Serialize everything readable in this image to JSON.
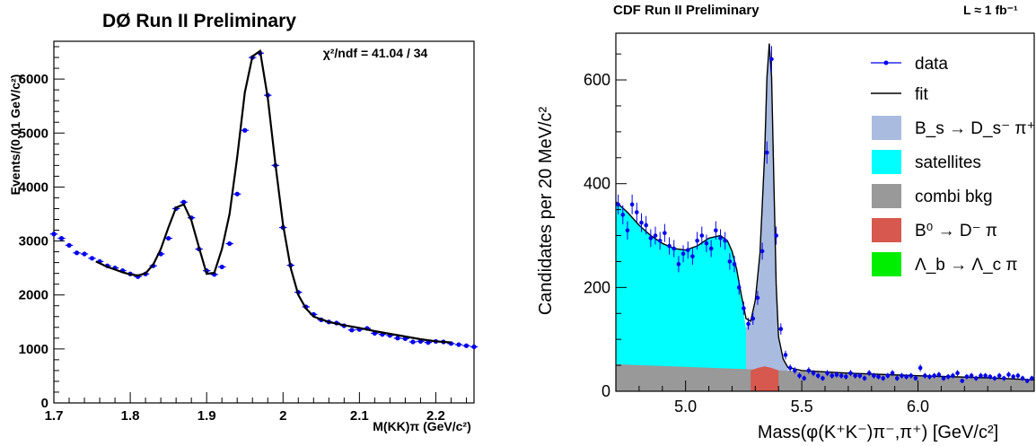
{
  "chart_data": [
    {
      "type": "scatter",
      "title": "DØ Run II Preliminary",
      "annotation": "χ²/ndf = 41.04 / 34",
      "ylabel": "Events/(0.01 GeV/c²)",
      "xlabel": "M(KK)π (GeV/c²)",
      "xlim": [
        1.7,
        2.25
      ],
      "ylim": [
        0,
        6700
      ],
      "xticks": [
        1.7,
        1.8,
        1.9,
        2.0,
        2.1,
        2.2
      ],
      "xtick_labels": [
        "1.7",
        "1.8",
        "1.9",
        "2",
        "2.1",
        "2.2"
      ],
      "yticks": [
        0,
        1000,
        2000,
        3000,
        4000,
        5000,
        6000
      ],
      "ytick_labels": [
        "0",
        "1000",
        "2000",
        "3000",
        "4000",
        "5000",
        "6000"
      ],
      "grid": false,
      "series": [
        {
          "name": "data",
          "color": "#0000ee",
          "x": [
            1.7,
            1.71,
            1.72,
            1.73,
            1.74,
            1.75,
            1.76,
            1.77,
            1.78,
            1.79,
            1.8,
            1.81,
            1.82,
            1.83,
            1.84,
            1.85,
            1.86,
            1.87,
            1.88,
            1.89,
            1.9,
            1.91,
            1.92,
            1.93,
            1.94,
            1.95,
            1.96,
            1.97,
            1.98,
            1.99,
            2.0,
            2.01,
            2.02,
            2.03,
            2.04,
            2.05,
            2.06,
            2.07,
            2.08,
            2.09,
            2.1,
            2.11,
            2.12,
            2.13,
            2.14,
            2.15,
            2.16,
            2.17,
            2.18,
            2.19,
            2.2,
            2.21,
            2.22,
            2.23,
            2.24,
            2.25
          ],
          "y": [
            3130,
            3050,
            2920,
            2780,
            2760,
            2680,
            2620,
            2540,
            2500,
            2450,
            2390,
            2340,
            2390,
            2540,
            2760,
            3050,
            3600,
            3720,
            3430,
            2850,
            2450,
            2380,
            2520,
            2950,
            3870,
            5050,
            6400,
            6480,
            5700,
            4400,
            3250,
            2550,
            2050,
            1780,
            1640,
            1540,
            1500,
            1480,
            1430,
            1350,
            1360,
            1380,
            1290,
            1270,
            1250,
            1200,
            1190,
            1130,
            1140,
            1120,
            1140,
            1130,
            1100,
            1080,
            1060,
            1040
          ]
        },
        {
          "name": "fit",
          "color": "#000000",
          "x": [
            1.755,
            1.77,
            1.78,
            1.79,
            1.8,
            1.81,
            1.82,
            1.83,
            1.84,
            1.85,
            1.86,
            1.87,
            1.88,
            1.89,
            1.9,
            1.91,
            1.92,
            1.93,
            1.94,
            1.95,
            1.96,
            1.97,
            1.98,
            1.99,
            2.0,
            2.01,
            2.02,
            2.03,
            2.04,
            2.06,
            2.08,
            2.1,
            2.12,
            2.14,
            2.16,
            2.18,
            2.2,
            2.22
          ],
          "y": [
            2620,
            2520,
            2470,
            2420,
            2380,
            2360,
            2400,
            2560,
            2850,
            3250,
            3620,
            3680,
            3380,
            2880,
            2390,
            2410,
            2850,
            3500,
            4550,
            5750,
            6420,
            6520,
            5650,
            4420,
            3300,
            2500,
            2000,
            1750,
            1600,
            1500,
            1440,
            1390,
            1330,
            1280,
            1230,
            1180,
            1140,
            1120
          ]
        }
      ]
    },
    {
      "type": "area",
      "title": "CDF Run II Preliminary",
      "luminosity": "L ≈ 1 fb⁻¹",
      "ylabel": "Candidates per 20 MeV/c²",
      "xlabel": "Mass(φ(K⁺K⁻)π⁻,π⁺)  [GeV/c²]",
      "xlim": [
        4.7,
        6.5
      ],
      "ylim": [
        0,
        690
      ],
      "xticks": [
        5.0,
        5.5,
        6.0
      ],
      "xtick_labels": [
        "5.0",
        "5.5",
        "6.0"
      ],
      "yticks": [
        0,
        200,
        400,
        600
      ],
      "ytick_labels": [
        "0",
        "200",
        "400",
        "600"
      ],
      "grid": false,
      "legend_position": "right",
      "legend": [
        {
          "label": "data",
          "kind": "marker",
          "color": "#0000ee"
        },
        {
          "label": "fit",
          "kind": "line",
          "color": "#000000"
        },
        {
          "label": "B_s → D_s⁻ π⁺",
          "kind": "box",
          "color": "#aabbe0"
        },
        {
          "label": "satellites",
          "kind": "box",
          "color": "#00ffff"
        },
        {
          "label": "combi bkg",
          "kind": "box",
          "color": "#999999"
        },
        {
          "label": "B⁰ → D⁻ π",
          "kind": "box",
          "color": "#d7584e"
        },
        {
          "label": "Λ_b → Λ_c π",
          "kind": "box",
          "color": "#00ee00"
        }
      ],
      "series": [
        {
          "name": "combi bkg",
          "color": "#999999",
          "x": [
            4.7,
            6.5
          ],
          "y": [
            52,
            22
          ]
        },
        {
          "name": "satellites",
          "color": "#00ffff",
          "x": [
            4.7,
            4.75,
            4.8,
            4.85,
            4.9,
            4.95,
            5.0,
            5.05,
            5.1,
            5.15,
            5.18,
            5.2,
            5.22,
            5.24,
            5.26,
            5.28,
            5.3,
            5.32
          ],
          "y": [
            365,
            345,
            320,
            300,
            285,
            275,
            272,
            280,
            295,
            300,
            290,
            270,
            235,
            180,
            120,
            80,
            50,
            40
          ]
        },
        {
          "name": "B⁰ → D⁻ π",
          "color": "#d7584e",
          "x": [
            5.28,
            5.31,
            5.34,
            5.37,
            5.4
          ],
          "y": [
            40,
            45,
            48,
            45,
            40
          ]
        },
        {
          "name": "B_s → D_s⁻ π⁺",
          "color": "#aabbe0",
          "x": [
            5.26,
            5.28,
            5.3,
            5.32,
            5.34,
            5.35,
            5.36,
            5.37,
            5.38,
            5.39,
            5.4,
            5.42,
            5.44
          ],
          "y": [
            125,
            130,
            170,
            260,
            450,
            600,
            665,
            600,
            400,
            200,
            100,
            60,
            45
          ]
        },
        {
          "name": "fit",
          "color": "#000000",
          "x": [
            4.7,
            4.75,
            4.8,
            4.85,
            4.9,
            4.95,
            5.0,
            5.05,
            5.1,
            5.15,
            5.18,
            5.2,
            5.22,
            5.24,
            5.26,
            5.28,
            5.3,
            5.32,
            5.34,
            5.35,
            5.36,
            5.37,
            5.38,
            5.39,
            5.4,
            5.42,
            5.44,
            5.5,
            5.7,
            6.0,
            6.3,
            6.5
          ],
          "y": [
            365,
            345,
            320,
            300,
            285,
            275,
            272,
            280,
            295,
            300,
            290,
            270,
            235,
            185,
            140,
            135,
            175,
            265,
            455,
            605,
            670,
            605,
            405,
            205,
            105,
            62,
            46,
            40,
            35,
            30,
            26,
            22
          ]
        },
        {
          "name": "data",
          "color": "#0000ee",
          "x": [
            4.71,
            4.73,
            4.75,
            4.77,
            4.79,
            4.81,
            4.83,
            4.85,
            4.87,
            4.89,
            4.91,
            4.93,
            4.95,
            4.97,
            4.99,
            5.01,
            5.03,
            5.05,
            5.07,
            5.09,
            5.11,
            5.13,
            5.15,
            5.17,
            5.19,
            5.21,
            5.23,
            5.25,
            5.27,
            5.29,
            5.31,
            5.33,
            5.35,
            5.37,
            5.39,
            5.41,
            5.43,
            5.45,
            5.47,
            5.49,
            5.51,
            5.53,
            5.55,
            5.57,
            5.59,
            5.61,
            5.63,
            5.65,
            5.67,
            5.69,
            5.71,
            5.73,
            5.75,
            5.77,
            5.79,
            5.81,
            5.83,
            5.85,
            5.87,
            5.89,
            5.91,
            5.93,
            5.95,
            5.97,
            5.99,
            6.01,
            6.03,
            6.05,
            6.07,
            6.09,
            6.11,
            6.13,
            6.15,
            6.17,
            6.19,
            6.21,
            6.23,
            6.25,
            6.27,
            6.29,
            6.31,
            6.33,
            6.35,
            6.37,
            6.39,
            6.41,
            6.43,
            6.45,
            6.47,
            6.49
          ],
          "y": [
            360,
            340,
            310,
            360,
            345,
            325,
            320,
            295,
            300,
            290,
            305,
            280,
            275,
            245,
            265,
            272,
            260,
            290,
            300,
            285,
            275,
            310,
            295,
            290,
            250,
            245,
            200,
            160,
            130,
            140,
            180,
            270,
            460,
            640,
            300,
            120,
            70,
            45,
            40,
            30,
            25,
            40,
            35,
            30,
            25,
            35,
            30,
            32,
            30,
            28,
            35,
            30,
            30,
            25,
            35,
            30,
            28,
            25,
            30,
            35,
            25,
            30,
            28,
            30,
            25,
            45,
            30,
            28,
            30,
            32,
            25,
            28,
            30,
            35,
            20,
            28,
            30,
            25,
            30,
            30,
            28,
            25,
            30,
            25,
            32,
            28,
            30,
            25,
            20,
            25
          ]
        }
      ]
    }
  ]
}
